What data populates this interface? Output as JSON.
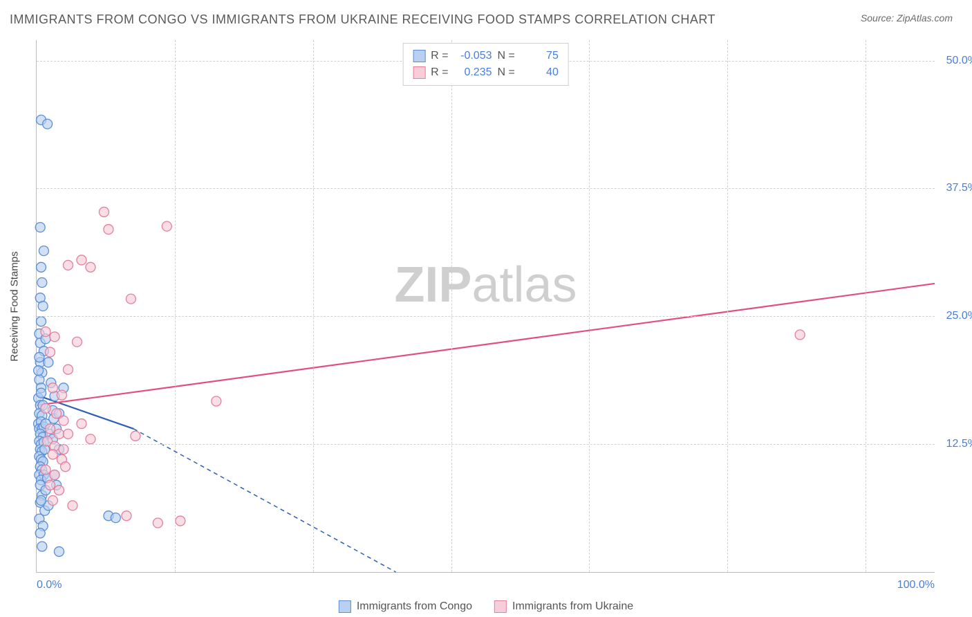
{
  "title": "IMMIGRANTS FROM CONGO VS IMMIGRANTS FROM UKRAINE RECEIVING FOOD STAMPS CORRELATION CHART",
  "source_label": "Source: ZipAtlas.com",
  "watermark": {
    "bold": "ZIP",
    "rest": "atlas"
  },
  "chart": {
    "type": "scatter",
    "background_color": "#ffffff",
    "grid_color": "#d0d0d0",
    "axis_color": "#bbbbbb",
    "tick_font_color": "#4a7ddb",
    "tick_fontsize": 16,
    "ylabel": "Receiving Food Stamps",
    "xlim": [
      0,
      100
    ],
    "ylim": [
      0,
      52
    ],
    "yticks": [
      {
        "v": 12.5,
        "label": "12.5%"
      },
      {
        "v": 25.0,
        "label": "25.0%"
      },
      {
        "v": 37.5,
        "label": "37.5%"
      },
      {
        "v": 50.0,
        "label": "50.0%"
      }
    ],
    "xticks_left": "0.0%",
    "xticks_right": "100.0%",
    "xgrid": [
      15.4,
      30.8,
      46.2,
      61.5,
      76.9,
      92.3
    ],
    "marker_radius": 7,
    "marker_stroke_width": 1.3,
    "line_width": 2.2,
    "series": [
      {
        "name": "Immigrants from Congo",
        "fill_color": "#b9d0f0",
        "stroke_color": "#5a8fd6",
        "line_color": "#2c5fb5",
        "R": "-0.053",
        "N": "75",
        "regression": {
          "x1": 0,
          "y1": 17.3,
          "x2": 10.8,
          "y2": 14.0,
          "dash_x1": 10.8,
          "dash_y1": 14.0,
          "dash_x2": 40,
          "dash_y2": 0
        },
        "points": [
          [
            0.5,
            44.2
          ],
          [
            1.2,
            43.8
          ],
          [
            0.4,
            33.7
          ],
          [
            0.8,
            31.4
          ],
          [
            0.5,
            29.8
          ],
          [
            0.6,
            28.3
          ],
          [
            0.4,
            26.8
          ],
          [
            0.7,
            26.0
          ],
          [
            0.5,
            24.5
          ],
          [
            0.3,
            23.3
          ],
          [
            0.4,
            22.4
          ],
          [
            0.8,
            21.6
          ],
          [
            0.4,
            20.5
          ],
          [
            0.6,
            19.5
          ],
          [
            0.3,
            18.8
          ],
          [
            0.5,
            18.0
          ],
          [
            0.2,
            17.0
          ],
          [
            0.4,
            16.3
          ],
          [
            0.7,
            16.3
          ],
          [
            0.3,
            15.5
          ],
          [
            0.6,
            15.3
          ],
          [
            0.2,
            14.5
          ],
          [
            0.5,
            14.7
          ],
          [
            0.3,
            14.0
          ],
          [
            0.6,
            14.0
          ],
          [
            0.8,
            14.2
          ],
          [
            0.4,
            13.5
          ],
          [
            0.7,
            13.2
          ],
          [
            0.3,
            12.8
          ],
          [
            0.5,
            12.5
          ],
          [
            0.8,
            12.7
          ],
          [
            0.4,
            12.0
          ],
          [
            0.6,
            11.8
          ],
          [
            0.3,
            11.3
          ],
          [
            0.5,
            11.0
          ],
          [
            0.7,
            10.8
          ],
          [
            0.4,
            10.3
          ],
          [
            0.6,
            10.0
          ],
          [
            0.3,
            9.5
          ],
          [
            0.8,
            9.5
          ],
          [
            0.5,
            9.0
          ],
          [
            0.4,
            8.5
          ],
          [
            1.2,
            9.2
          ],
          [
            1.5,
            13.5
          ],
          [
            1.8,
            15.8
          ],
          [
            2.0,
            17.2
          ],
          [
            2.2,
            14.0
          ],
          [
            2.5,
            12.0
          ],
          [
            1.0,
            22.8
          ],
          [
            1.3,
            20.5
          ],
          [
            1.6,
            18.5
          ],
          [
            1.9,
            15.0
          ],
          [
            2.2,
            8.5
          ],
          [
            0.6,
            7.5
          ],
          [
            0.4,
            6.8
          ],
          [
            0.9,
            6.0
          ],
          [
            0.3,
            5.2
          ],
          [
            0.7,
            4.5
          ],
          [
            0.4,
            3.8
          ],
          [
            0.6,
            2.5
          ],
          [
            1.0,
            8.0
          ],
          [
            1.3,
            6.5
          ],
          [
            2.0,
            9.5
          ],
          [
            0.2,
            19.7
          ],
          [
            0.3,
            21.0
          ],
          [
            0.5,
            17.5
          ],
          [
            3.0,
            18.0
          ],
          [
            1.0,
            14.5
          ],
          [
            2.5,
            15.5
          ],
          [
            0.9,
            12.0
          ],
          [
            1.8,
            13.0
          ],
          [
            0.5,
            7.0
          ],
          [
            8.0,
            5.5
          ],
          [
            8.8,
            5.3
          ],
          [
            2.5,
            2.0
          ]
        ]
      },
      {
        "name": "Immigrants from Ukraine",
        "fill_color": "#f6cdd8",
        "stroke_color": "#e47f9c",
        "line_color": "#e24f7e",
        "R": "0.235",
        "N": "40",
        "regression": {
          "x1": 0,
          "y1": 16.3,
          "x2": 100,
          "y2": 28.2
        },
        "points": [
          [
            7.5,
            35.2
          ],
          [
            8.0,
            33.5
          ],
          [
            14.5,
            33.8
          ],
          [
            5.0,
            30.5
          ],
          [
            6.0,
            29.8
          ],
          [
            10.5,
            26.7
          ],
          [
            1.0,
            23.5
          ],
          [
            2.0,
            23.0
          ],
          [
            4.5,
            22.5
          ],
          [
            1.5,
            21.5
          ],
          [
            3.5,
            19.8
          ],
          [
            1.8,
            18.0
          ],
          [
            2.8,
            17.3
          ],
          [
            1.0,
            16.0
          ],
          [
            2.2,
            15.5
          ],
          [
            3.0,
            14.8
          ],
          [
            1.5,
            14.0
          ],
          [
            2.5,
            13.5
          ],
          [
            3.5,
            13.5
          ],
          [
            1.2,
            12.8
          ],
          [
            2.0,
            12.3
          ],
          [
            3.0,
            12.0
          ],
          [
            1.8,
            11.5
          ],
          [
            2.8,
            11.0
          ],
          [
            1.0,
            10.0
          ],
          [
            2.0,
            9.5
          ],
          [
            3.2,
            10.3
          ],
          [
            1.5,
            8.5
          ],
          [
            2.5,
            8.0
          ],
          [
            4.0,
            6.5
          ],
          [
            1.8,
            7.0
          ],
          [
            5.0,
            14.5
          ],
          [
            6.0,
            13.0
          ],
          [
            11.0,
            13.3
          ],
          [
            13.5,
            4.8
          ],
          [
            10.0,
            5.5
          ],
          [
            20.0,
            16.7
          ],
          [
            16.0,
            5.0
          ],
          [
            85.0,
            23.2
          ],
          [
            3.5,
            30.0
          ]
        ]
      }
    ],
    "legend_top": {
      "r_label": "R =",
      "n_label": "N ="
    }
  }
}
